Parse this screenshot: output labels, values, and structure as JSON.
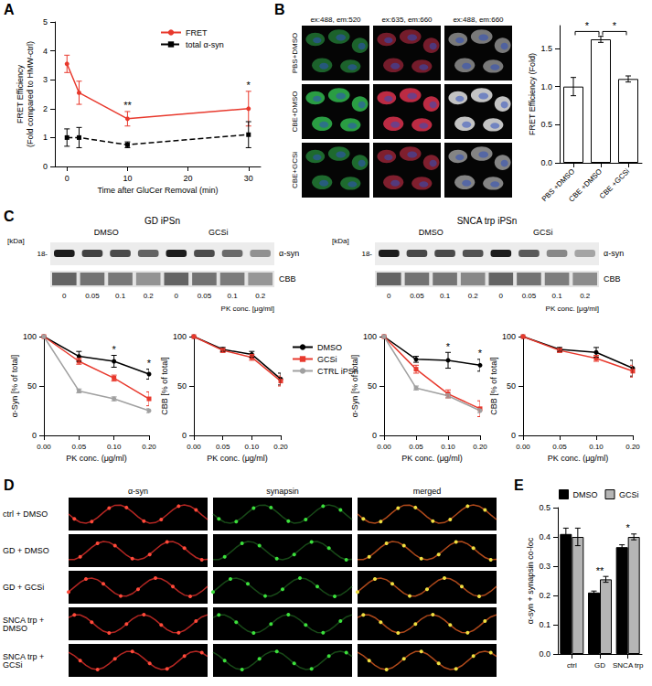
{
  "panel_labels": [
    "A",
    "B",
    "C",
    "D",
    "E"
  ],
  "chart_data": [
    {
      "panel": "A",
      "type": "line",
      "x": [
        0,
        2,
        10,
        30
      ],
      "xlim": [
        -2,
        32
      ],
      "xticks": [
        0,
        10,
        20,
        30
      ],
      "ylim": [
        0,
        5
      ],
      "yticks": [
        0,
        1,
        2,
        3,
        4,
        5
      ],
      "xlabel": "Time after GluCer Removal (min)",
      "ylabel": "FRET Efficiency\n(Fold compared to HMW-ctrl)",
      "legend": "upper right",
      "series": [
        {
          "name": "FRET",
          "color": "#e8392d",
          "marker": "circle",
          "line_style": "solid",
          "values": [
            3.55,
            2.55,
            1.65,
            2.0
          ],
          "errors": [
            0.3,
            0.4,
            0.25,
            0.6
          ]
        },
        {
          "name": "total α-syn",
          "color": "#000000",
          "marker": "square",
          "line_style": "dashed",
          "values": [
            1.0,
            1.0,
            0.75,
            1.1
          ],
          "errors": [
            0.3,
            0.35,
            0.1,
            0.45
          ]
        }
      ],
      "annotations": [
        {
          "x": 10,
          "series": "FRET",
          "text": "**"
        },
        {
          "x": 30,
          "series": "FRET",
          "text": "*"
        }
      ]
    },
    {
      "panel": "B",
      "type": "bar",
      "categories": [
        "PBS +DMSO",
        "CBE +DMSO",
        "CBE +GCSi"
      ],
      "values": [
        1.0,
        1.62,
        1.1
      ],
      "errors": [
        0.12,
        0.04,
        0.04
      ],
      "color": "#ffffff",
      "ylim": [
        0,
        1.8
      ],
      "yticks": [
        {
          "value": 0,
          "label": "0.0"
        },
        0.5,
        {
          "value": 1,
          "label": "1.0"
        },
        1.5
      ],
      "ylabel": "FRET Efficiency (Fold)",
      "annotations": [
        {
          "from": "PBS +DMSO",
          "to": "CBE +DMSO",
          "text": "*"
        },
        {
          "from": "CBE +DMSO",
          "to": "CBE +GCSi",
          "text": "*"
        }
      ]
    },
    {
      "panel": "C",
      "type": "line",
      "categories": [
        "0.00",
        "0.05",
        "0.10",
        "0.20"
      ],
      "ylim": [
        0,
        100
      ],
      "yticks": [
        0,
        50,
        100
      ],
      "xlabel": "PK conc. (μg/ml)",
      "ylabel": "α-Syn [% of total]",
      "legend": "upper right",
      "series": [
        {
          "name": "DMSO",
          "color": "#000000",
          "marker": "circle",
          "line_style": "solid",
          "values": [
            100,
            80,
            75,
            62
          ],
          "errors": [
            0,
            5,
            6,
            5
          ]
        },
        {
          "name": "GCSi",
          "color": "#e8392d",
          "marker": "square",
          "line_style": "solid",
          "values": [
            100,
            75,
            58,
            37
          ],
          "errors": [
            0,
            3,
            3,
            7
          ]
        },
        {
          "name": "CTRL iPSn",
          "color": "#a0a0a0",
          "marker": "circle",
          "line_style": "solid",
          "values": [
            100,
            45,
            37,
            25
          ],
          "errors": [
            0,
            2,
            2,
            2
          ]
        }
      ],
      "annotations": [
        {
          "x": "0.10",
          "series": "DMSO",
          "text": "*"
        },
        {
          "x": "0.20",
          "series": "DMSO",
          "text": "*"
        }
      ]
    },
    {
      "panel": "C",
      "type": "line",
      "categories": [
        "0.00",
        "0.05",
        "0.10",
        "0.20"
      ],
      "ylim": [
        0,
        100
      ],
      "yticks": [
        0,
        50,
        100
      ],
      "xlabel": "PK conc. (μg/ml)",
      "ylabel": "CBB [% of total]",
      "series": [
        {
          "name": "DMSO",
          "color": "#000000",
          "marker": "circle",
          "line_style": "solid",
          "values": [
            100,
            87,
            82,
            57
          ],
          "errors": [
            0,
            2,
            3,
            6
          ]
        },
        {
          "name": "GCSi",
          "color": "#e8392d",
          "marker": "square",
          "line_style": "solid",
          "values": [
            100,
            86,
            79,
            55
          ],
          "errors": [
            0,
            2,
            3,
            5
          ]
        }
      ]
    },
    {
      "panel": "C",
      "type": "line",
      "categories": [
        "0.00",
        "0.05",
        "0.10",
        "0.20"
      ],
      "ylim": [
        0,
        100
      ],
      "yticks": [
        0,
        50,
        100
      ],
      "xlabel": "PK conc. (μg/ml)",
      "ylabel": "α-Syn [% of total]",
      "series": [
        {
          "name": "DMSO",
          "color": "#000000",
          "marker": "circle",
          "line_style": "solid",
          "values": [
            100,
            77,
            76,
            71
          ],
          "errors": [
            0,
            3,
            8,
            6
          ]
        },
        {
          "name": "GCSi",
          "color": "#e8392d",
          "marker": "square",
          "line_style": "solid",
          "values": [
            100,
            67,
            42,
            27
          ],
          "errors": [
            0,
            4,
            4,
            8
          ]
        },
        {
          "name": "CTRL iPSn",
          "color": "#a0a0a0",
          "marker": "circle",
          "line_style": "solid",
          "values": [
            100,
            48,
            40,
            25
          ],
          "errors": [
            0,
            2,
            2,
            2
          ]
        }
      ],
      "annotations": [
        {
          "x": "0.10",
          "series": "DMSO",
          "text": "*"
        },
        {
          "x": "0.20",
          "series": "DMSO",
          "text": "*"
        }
      ]
    },
    {
      "panel": "C",
      "type": "line",
      "categories": [
        "0.00",
        "0.05",
        "0.10",
        "0.20"
      ],
      "ylim": [
        0,
        100
      ],
      "yticks": [
        0,
        50,
        100
      ],
      "xlabel": "PK conc. (μg/ml)",
      "ylabel": "CBB [% of total]",
      "series": [
        {
          "name": "DMSO",
          "color": "#000000",
          "marker": "circle",
          "line_style": "solid",
          "values": [
            100,
            87,
            84,
            68
          ],
          "errors": [
            0,
            2,
            5,
            8
          ]
        },
        {
          "name": "GCSi",
          "color": "#e8392d",
          "marker": "square",
          "line_style": "solid",
          "values": [
            100,
            86,
            78,
            65
          ],
          "errors": [
            0,
            2,
            3,
            6
          ]
        }
      ]
    },
    {
      "panel": "E",
      "type": "bar",
      "categories": [
        "ctrl",
        "GD",
        "SNCA trp"
      ],
      "series": [
        {
          "name": "DMSO",
          "color": "#000000",
          "values": [
            0.41,
            0.21,
            0.365
          ],
          "errors": [
            0.02,
            0.005,
            0.008
          ]
        },
        {
          "name": "GCSi",
          "color": "#b5b5b5",
          "values": [
            0.4,
            0.255,
            0.4
          ],
          "errors": [
            0.03,
            0.01,
            0.01
          ]
        }
      ],
      "ylim": [
        0,
        0.5
      ],
      "yticks": [
        {
          "value": 0,
          "label": "0.0"
        },
        0.1,
        0.2,
        0.3,
        0.4,
        0.5
      ],
      "ylabel": "α-syn + synapsin co-loc",
      "legend": "top",
      "annotations": [
        {
          "category": "GD",
          "text": "**"
        },
        {
          "category": "SNCA trp",
          "text": "*"
        }
      ]
    }
  ],
  "images": {
    "B": {
      "columns": [
        "ex:488, em:520",
        "ex:635, em:660",
        "ex:488, em:660"
      ],
      "rows": [
        "PBS+DMSO",
        "CBE+DMSO",
        "CBE+GCSi"
      ]
    },
    "C": [
      {
        "title": "GD iPSn",
        "groups": [
          "DMSO",
          "GCSi"
        ],
        "unit": "[kDa]",
        "ladder": "18-",
        "bands": [
          "α-syn",
          "CBB"
        ],
        "lanes": [
          "0",
          "0.05",
          "0.1",
          "0.2"
        ],
        "lane_axis": "PK conc. [μg/ml]"
      },
      {
        "title": "SNCA trp iPSn",
        "groups": [
          "DMSO",
          "GCSi"
        ],
        "unit": "[kDa]",
        "ladder": "18-",
        "bands": [
          "α-syn",
          "CBB"
        ],
        "lanes": [
          "0",
          "0.05",
          "0.1",
          "0.2"
        ],
        "lane_axis": "PK conc. [μg/ml]"
      }
    ],
    "D": {
      "columns": [
        "α-syn",
        "synapsin",
        "merged"
      ],
      "rows": [
        "ctrl + DMSO",
        "GD + DMSO",
        "GD + GCSi",
        "SNCA trp + DMSO",
        "SNCA trp + GCSi"
      ]
    }
  }
}
